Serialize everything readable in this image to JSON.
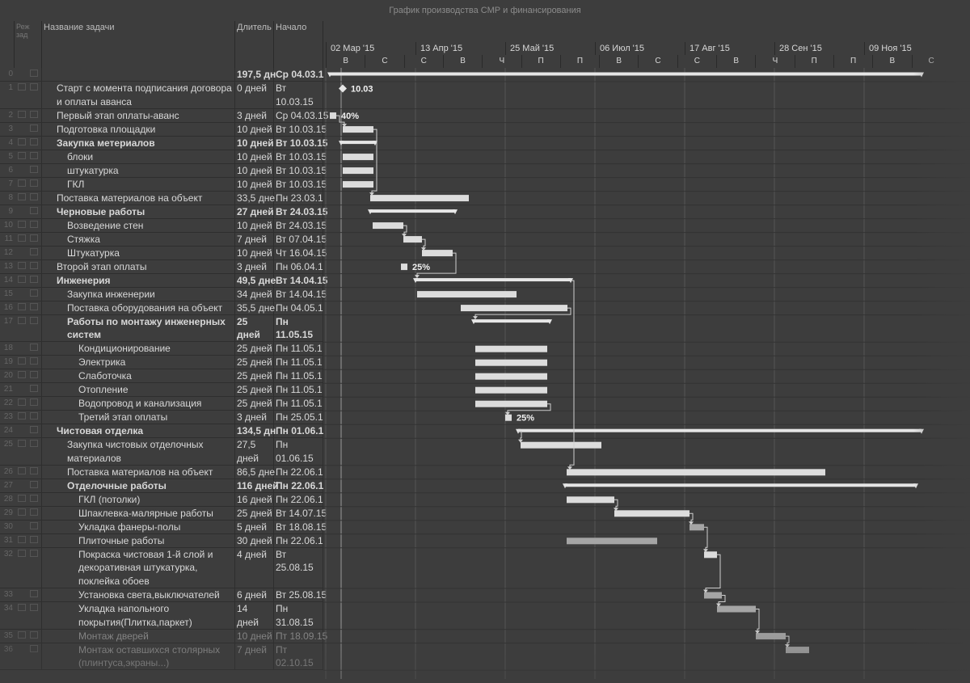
{
  "title": "График производства СМР и финансирования",
  "columns": {
    "id": "",
    "indicator": "Реж\nзад",
    "name": "Название задачи",
    "duration": "Длитель",
    "start": "Начало"
  },
  "timescale": {
    "top": [
      "02 Мар '15",
      "13 Апр '15",
      "25 Май '15",
      "06 Июл '15",
      "17 Авг '15",
      "28 Сен '15",
      "09 Ноя '15"
    ],
    "bottom": [
      "В",
      "С",
      "С",
      "В",
      "Ч",
      "П",
      "П",
      "В",
      "С",
      "С",
      "В",
      "Ч",
      "П",
      "П",
      "В",
      "С"
    ]
  },
  "tasks": [
    {
      "id": "0",
      "name": "",
      "duration": "197,5 дн",
      "start": "Ср 04.03.1",
      "bold": true,
      "level": 0,
      "lines": 1
    },
    {
      "id": "1",
      "name": "Старт с момента подписания договора и оплаты аванса",
      "duration": "0 дней",
      "start": "Вт 10.03.15",
      "bold": false,
      "level": 1,
      "lines": 2
    },
    {
      "id": "2",
      "name": "Первый этап оплаты-аванс",
      "duration": "3 дней",
      "start": "Ср 04.03.15",
      "bold": false,
      "level": 1,
      "lines": 1
    },
    {
      "id": "3",
      "name": "Подготовка площадки",
      "duration": "10 дней",
      "start": "Вт 10.03.15",
      "bold": false,
      "level": 1,
      "lines": 1
    },
    {
      "id": "4",
      "name": "Закупка метериалов",
      "duration": "10 дней",
      "start": "Вт 10.03.15",
      "bold": true,
      "level": 1,
      "lines": 1
    },
    {
      "id": "5",
      "name": "блоки",
      "duration": "10 дней",
      "start": "Вт 10.03.15",
      "bold": false,
      "level": 2,
      "lines": 1
    },
    {
      "id": "6",
      "name": "штукатурка",
      "duration": "10 дней",
      "start": "Вт 10.03.15",
      "bold": false,
      "level": 2,
      "lines": 1
    },
    {
      "id": "7",
      "name": "ГКЛ",
      "duration": "10 дней",
      "start": "Вт 10.03.15",
      "bold": false,
      "level": 2,
      "lines": 1
    },
    {
      "id": "8",
      "name": "Поставка материалов на объект",
      "duration": "33,5 дне",
      "start": "Пн 23.03.1",
      "bold": false,
      "level": 1,
      "lines": 1
    },
    {
      "id": "9",
      "name": "Черновые работы",
      "duration": "27 дней",
      "start": "Вт 24.03.15",
      "bold": true,
      "level": 1,
      "lines": 1
    },
    {
      "id": "10",
      "name": "Возведение стен",
      "duration": "10 дней",
      "start": "Вт 24.03.15",
      "bold": false,
      "level": 2,
      "lines": 1
    },
    {
      "id": "11",
      "name": "Стяжка",
      "duration": "7 дней",
      "start": "Вт 07.04.15",
      "bold": false,
      "level": 2,
      "lines": 1
    },
    {
      "id": "12",
      "name": "Штукатурка",
      "duration": "10 дней",
      "start": "Чт 16.04.15",
      "bold": false,
      "level": 2,
      "lines": 1
    },
    {
      "id": "13",
      "name": "Второй этап оплаты",
      "duration": "3 дней",
      "start": "Пн 06.04.1",
      "bold": false,
      "level": 1,
      "lines": 1
    },
    {
      "id": "14",
      "name": "Инженерия",
      "duration": "49,5 дне",
      "start": "Вт 14.04.15",
      "bold": true,
      "level": 1,
      "lines": 1
    },
    {
      "id": "15",
      "name": "Закупка инженерии",
      "duration": "34 дней",
      "start": "Вт 14.04.15",
      "bold": false,
      "level": 2,
      "lines": 1
    },
    {
      "id": "16",
      "name": "Поставка оборудования на объект",
      "duration": "35,5 дне",
      "start": "Пн 04.05.1",
      "bold": false,
      "level": 2,
      "lines": 1
    },
    {
      "id": "17",
      "name": "Работы по монтажу инженерных систем",
      "duration": "25 дней",
      "start": "Пн 11.05.15",
      "bold": true,
      "level": 2,
      "lines": 2
    },
    {
      "id": "18",
      "name": "Кондиционирование",
      "duration": "25 дней",
      "start": "Пн 11.05.1",
      "bold": false,
      "level": 3,
      "lines": 1
    },
    {
      "id": "19",
      "name": "Электрика",
      "duration": "25 дней",
      "start": "Пн 11.05.1",
      "bold": false,
      "level": 3,
      "lines": 1
    },
    {
      "id": "20",
      "name": "Слаботочка",
      "duration": "25 дней",
      "start": "Пн 11.05.1",
      "bold": false,
      "level": 3,
      "lines": 1
    },
    {
      "id": "21",
      "name": "Отопление",
      "duration": "25 дней",
      "start": "Пн 11.05.1",
      "bold": false,
      "level": 3,
      "lines": 1
    },
    {
      "id": "22",
      "name": "Водопровод и канализация",
      "duration": "25 дней",
      "start": "Пн 11.05.1",
      "bold": false,
      "level": 3,
      "lines": 1
    },
    {
      "id": "23",
      "name": "Третий этап оплаты",
      "duration": "3 дней",
      "start": "Пн 25.05.1",
      "bold": false,
      "level": 3,
      "lines": 1
    },
    {
      "id": "24",
      "name": "Чистовая отделка",
      "duration": "134,5 дн",
      "start": "Пн 01.06.1",
      "bold": true,
      "level": 1,
      "lines": 1
    },
    {
      "id": "25",
      "name": "Закупка чистовых отделочных материалов",
      "duration": "27,5 дней",
      "start": "Пн 01.06.15",
      "bold": false,
      "level": 2,
      "lines": 2
    },
    {
      "id": "26",
      "name": "Поставка материалов на объект",
      "duration": "86,5 дне",
      "start": "Пн 22.06.1",
      "bold": false,
      "level": 2,
      "lines": 1
    },
    {
      "id": "27",
      "name": "Отделочные работы",
      "duration": "116 дней",
      "start": "Пн 22.06.1",
      "bold": true,
      "level": 2,
      "lines": 1
    },
    {
      "id": "28",
      "name": "ГКЛ (потолки)",
      "duration": "16 дней",
      "start": "Пн 22.06.1",
      "bold": false,
      "level": 3,
      "lines": 1
    },
    {
      "id": "29",
      "name": "Шпаклевка-малярные работы",
      "duration": "25 дней",
      "start": "Вт 14.07.15",
      "bold": false,
      "level": 3,
      "lines": 1
    },
    {
      "id": "30",
      "name": "Укладка фанеры-полы",
      "duration": "5 дней",
      "start": "Вт 18.08.15",
      "bold": false,
      "level": 3,
      "lines": 1
    },
    {
      "id": "31",
      "name": "Плиточные работы",
      "duration": "30 дней",
      "start": "Пн 22.06.1",
      "bold": false,
      "level": 3,
      "lines": 1
    },
    {
      "id": "32",
      "name": "Покраска чистовая 1-й слой и декоративная штукатурка, поклейка обоев",
      "duration": "4 дней",
      "start": "Вт 25.08.15",
      "bold": false,
      "level": 3,
      "lines": 3
    },
    {
      "id": "33",
      "name": "Установка света,выключателей",
      "duration": "6 дней",
      "start": "Вт 25.08.15",
      "bold": false,
      "level": 3,
      "lines": 1
    },
    {
      "id": "34",
      "name": "Укладка напольного покрытия(Плитка,паркет)",
      "duration": "14 дней",
      "start": "Пн 31.08.15",
      "bold": false,
      "level": 3,
      "lines": 2
    },
    {
      "id": "35",
      "name": "Монтаж дверей",
      "duration": "10 дней",
      "start": "Пт 18.09.15",
      "bold": false,
      "level": 3,
      "lines": 1
    },
    {
      "id": "36",
      "name": "Монтаж оставшихся столярных (плинтуса,экраны...)",
      "duration": "7 дней",
      "start": "Пт 02.10.15",
      "bold": false,
      "level": 3,
      "lines": 2
    }
  ],
  "labels": {
    "milestone": "10.03",
    "pay1": "40%",
    "pay2": "25%",
    "pay3": "25%"
  },
  "colors": {
    "background": "#3d3d3d",
    "bar": "#d9d9d9",
    "summary": "#e6e6e6",
    "grid": "#2e2e2e"
  }
}
